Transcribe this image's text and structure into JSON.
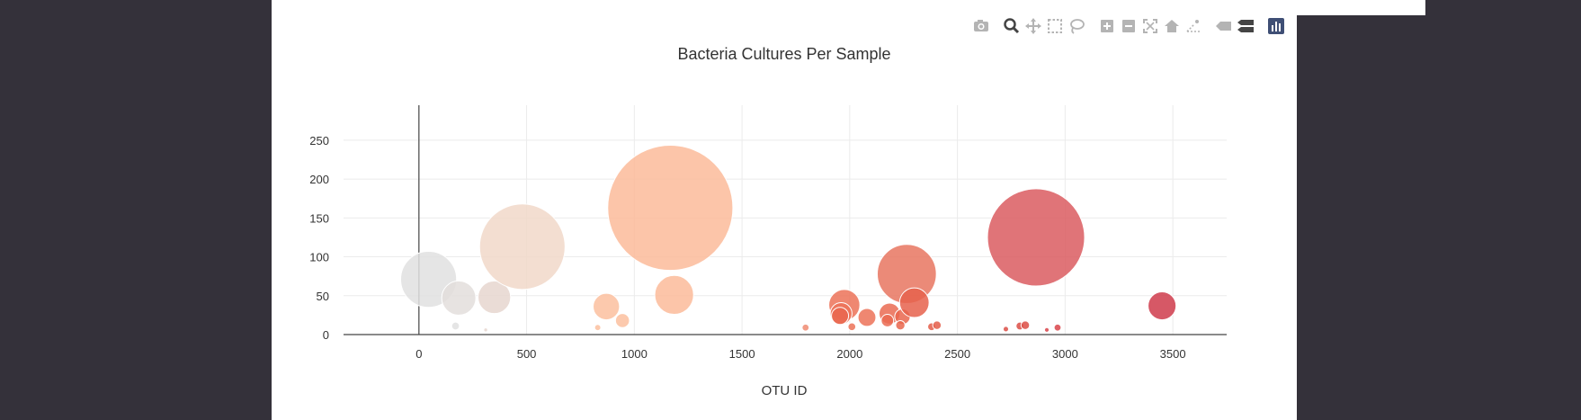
{
  "modebar": {
    "buttons": [
      {
        "name": "camera-icon",
        "title": "Download plot as a png"
      },
      {
        "name": "zoom-icon",
        "title": "Zoom"
      },
      {
        "name": "pan-icon",
        "title": "Pan"
      },
      {
        "name": "box-select-icon",
        "title": "Box Select"
      },
      {
        "name": "lasso-select-icon",
        "title": "Lasso Select"
      },
      {
        "name": "zoom-in-icon",
        "title": "Zoom in"
      },
      {
        "name": "zoom-out-icon",
        "title": "Zoom out"
      },
      {
        "name": "autoscale-icon",
        "title": "Autoscale"
      },
      {
        "name": "reset-axes-icon",
        "title": "Reset axes"
      },
      {
        "name": "spike-lines-icon",
        "title": "Toggle Spike Lines"
      },
      {
        "name": "hover-closest-icon",
        "title": "Show closest data on hover"
      },
      {
        "name": "hover-compare-icon",
        "title": "Compare data on hover"
      },
      {
        "name": "plotly-logo-icon",
        "title": "Produced with Plotly"
      }
    ],
    "active_color": "#444444",
    "inactive_color": "#b4b4b4",
    "logo_color": "#3f4f75"
  },
  "chart_data": {
    "type": "scatter",
    "title": "Bacteria Cultures Per Sample",
    "xlabel": "OTU ID",
    "ylabel": "",
    "xlim": [
      -350,
      3750
    ],
    "ylim": [
      0,
      295
    ],
    "x_ticks": [
      0,
      500,
      1000,
      1500,
      2000,
      2500,
      3000,
      3500
    ],
    "y_ticks": [
      0,
      50,
      100,
      150,
      200,
      250
    ],
    "grid": true,
    "legend": "none",
    "marker_sizing": "bubble diameter proportional to sample value",
    "colorscale": "light grey to peach to dark red by OTU ID",
    "points": [
      {
        "x": 45,
        "y": 71,
        "color": "#e0e0e0"
      },
      {
        "x": 185,
        "y": 47,
        "color": "#e3dedc"
      },
      {
        "x": 350,
        "y": 48,
        "color": "#e6d6cf"
      },
      {
        "x": 480,
        "y": 113,
        "color": "#f1d8c9"
      },
      {
        "x": 170,
        "y": 11,
        "color": "#e0e0e0"
      },
      {
        "x": 310,
        "y": 6,
        "color": "#e6d6cf"
      },
      {
        "x": 870,
        "y": 36,
        "color": "#fbbf9f"
      },
      {
        "x": 945,
        "y": 18,
        "color": "#fbbf9f"
      },
      {
        "x": 830,
        "y": 9,
        "color": "#fbbf9f"
      },
      {
        "x": 1167,
        "y": 163,
        "color": "#fcbb9a"
      },
      {
        "x": 1185,
        "y": 51,
        "color": "#fcbb9a"
      },
      {
        "x": 1795,
        "y": 9,
        "color": "#f08b72"
      },
      {
        "x": 1975,
        "y": 38,
        "color": "#ec7258"
      },
      {
        "x": 1960,
        "y": 27,
        "color": "#ec7258"
      },
      {
        "x": 1955,
        "y": 24,
        "color": "#e9674f"
      },
      {
        "x": 2010,
        "y": 10,
        "color": "#ec7258"
      },
      {
        "x": 2080,
        "y": 22,
        "color": "#ec7258"
      },
      {
        "x": 2185,
        "y": 27,
        "color": "#ea6b52"
      },
      {
        "x": 2175,
        "y": 18,
        "color": "#ea6b52"
      },
      {
        "x": 2245,
        "y": 23,
        "color": "#e9664e"
      },
      {
        "x": 2235,
        "y": 12,
        "color": "#e9664e"
      },
      {
        "x": 2265,
        "y": 78,
        "color": "#e77560"
      },
      {
        "x": 2300,
        "y": 41,
        "color": "#e6614c"
      },
      {
        "x": 2380,
        "y": 10,
        "color": "#e45d49"
      },
      {
        "x": 2405,
        "y": 12,
        "color": "#e45d49"
      },
      {
        "x": 2725,
        "y": 7,
        "color": "#dc4e45"
      },
      {
        "x": 2790,
        "y": 11,
        "color": "#dc4e45"
      },
      {
        "x": 2815,
        "y": 12,
        "color": "#dc4e45"
      },
      {
        "x": 2865,
        "y": 125,
        "color": "#da5c60"
      },
      {
        "x": 2915,
        "y": 6,
        "color": "#d9444a"
      },
      {
        "x": 2965,
        "y": 9,
        "color": "#d9444a"
      },
      {
        "x": 3450,
        "y": 37,
        "color": "#cf3b4b"
      }
    ],
    "sizes": [
      72,
      44,
      42,
      110,
      10,
      5,
      34,
      18,
      8,
      161,
      50,
      9,
      40,
      28,
      22,
      10,
      23,
      27,
      16,
      20,
      12,
      76,
      38,
      10,
      11,
      7,
      10,
      11,
      125,
      6,
      9,
      36
    ]
  }
}
